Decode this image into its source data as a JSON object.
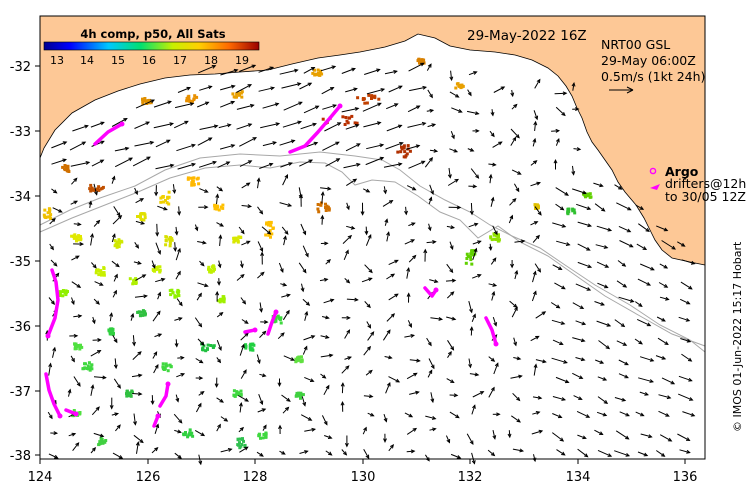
{
  "header": {
    "timestamp": "29-May-2022 16Z",
    "product": "NRT00 GSL",
    "current_time": "29-May 06:00Z",
    "current_scale": "0.5m/s (1kt 24h)"
  },
  "colorbar": {
    "title": "4h comp, p50, All Sats",
    "ticks": [
      "13",
      "14",
      "15",
      "16",
      "17",
      "18",
      "19"
    ]
  },
  "legend": {
    "argo_label": "Argo",
    "drifters_line1": "drifters@12h",
    "drifters_line2": "to 30/05 12Z"
  },
  "axes": {
    "x_ticks": [
      "124",
      "126",
      "128",
      "130",
      "132",
      "134",
      "136"
    ],
    "y_ticks": [
      "-32",
      "-33",
      "-34",
      "-35",
      "-36",
      "-37",
      "-38"
    ]
  },
  "credit": "© IMOS 01-Jun-2022 15:17 Hobart",
  "colors": {
    "land": "#fdc896",
    "drifter": "#ff00ff",
    "bathymetry": "#a8a8a8"
  }
}
